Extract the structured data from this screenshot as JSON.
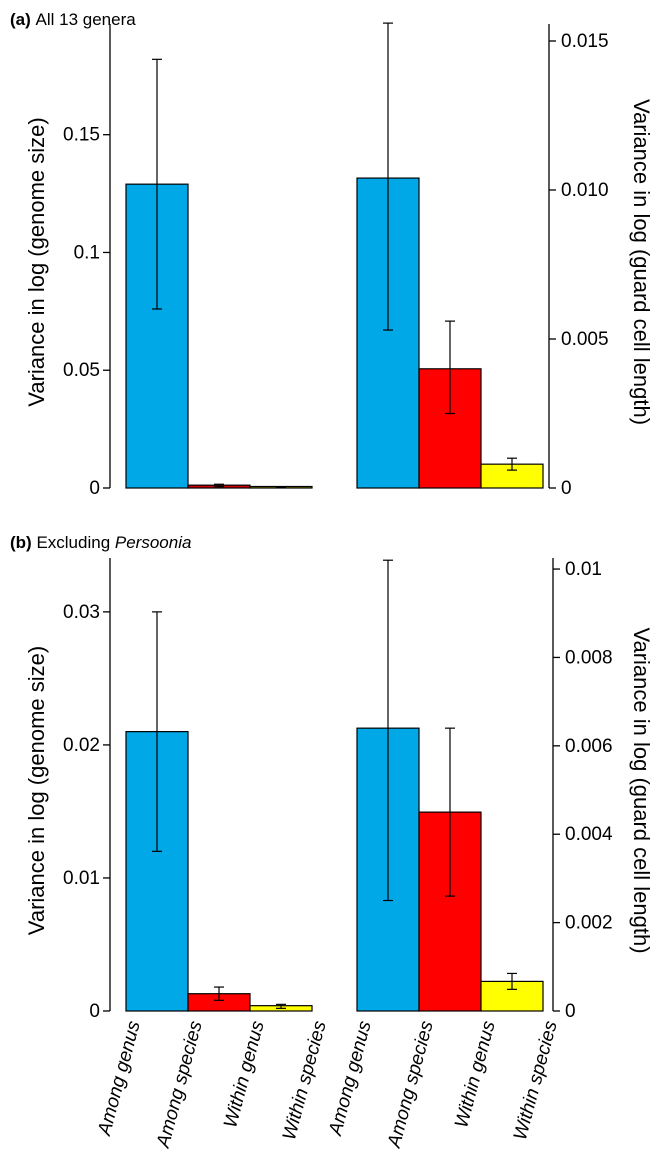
{
  "colors": {
    "among_genus": "#00A8E8",
    "among_species": "#FF0000",
    "within_genus": "#FFFF00",
    "stroke": "#000000"
  },
  "categories": [
    "Among genus",
    "Among species",
    "Within genus",
    "Within species"
  ],
  "chart_data": [
    {
      "panel_label": "(a)",
      "panel_title": "All 13 genera",
      "panel_title_italic": "",
      "panels": [
        {
          "type": "bar",
          "side": "left",
          "ylabel": "Variance in log (genome size)",
          "ylim": [
            0,
            0.197
          ],
          "yticks": [
            {
              "value": 0,
              "label": "0"
            },
            {
              "value": 0.05,
              "label": "0.05"
            },
            {
              "value": 0.1,
              "label": "0.1"
            },
            {
              "value": 0.15,
              "label": "0.15"
            }
          ],
          "values": [
            0.129,
            0.0012,
            0.0004
          ],
          "errors": [
            [
              0.076,
              0.182
            ],
            [
              0.0006,
              0.0016
            ],
            [
              0.0002,
              0.0006
            ]
          ],
          "colors": [
            "#00A8E8",
            "#CC0000",
            "#CCCC00"
          ]
        },
        {
          "type": "bar",
          "side": "right",
          "ylabel": "Variance in log (guard cell length)",
          "ylim": [
            0,
            0.01557
          ],
          "yticks": [
            {
              "value": 0,
              "label": "0"
            },
            {
              "value": 0.005,
              "label": "0.005"
            },
            {
              "value": 0.01,
              "label": "0.010"
            },
            {
              "value": 0.015,
              "label": "0.015"
            }
          ],
          "values": [
            0.0104,
            0.004,
            0.0008
          ],
          "errors": [
            [
              0.0053,
              0.0156
            ],
            [
              0.0025,
              0.0056
            ],
            [
              0.0006,
              0.001
            ]
          ],
          "colors": [
            "#00A8E8",
            "#FF0000",
            "#FFFF00"
          ]
        }
      ]
    },
    {
      "panel_label": "(b)",
      "panel_title": "Excluding ",
      "panel_title_italic": "Persoonia",
      "panels": [
        {
          "type": "bar",
          "side": "left",
          "ylabel": "Variance in log (genome size)",
          "ylim": [
            0,
            0.03405
          ],
          "yticks": [
            {
              "value": 0,
              "label": "0"
            },
            {
              "value": 0.01,
              "label": "0.01"
            },
            {
              "value": 0.02,
              "label": "0.02"
            },
            {
              "value": 0.03,
              "label": "0.03"
            }
          ],
          "values": [
            0.021,
            0.0013,
            0.0004
          ],
          "errors": [
            [
              0.012,
              0.03
            ],
            [
              0.0008,
              0.0018
            ],
            [
              0.0002,
              0.0005
            ]
          ],
          "colors": [
            "#00A8E8",
            "#FF0000",
            "#FFFF00"
          ]
        },
        {
          "type": "bar",
          "side": "right",
          "ylabel": "Variance in log (guard cell length)",
          "ylim": [
            0,
            0.01025
          ],
          "yticks": [
            {
              "value": 0,
              "label": "0"
            },
            {
              "value": 0.002,
              "label": "0.002"
            },
            {
              "value": 0.004,
              "label": "0.004"
            },
            {
              "value": 0.006,
              "label": "0.006"
            },
            {
              "value": 0.008,
              "label": "0.008"
            },
            {
              "value": 0.01,
              "label": "0.01"
            }
          ],
          "values": [
            0.0064,
            0.0045,
            0.00067
          ],
          "errors": [
            [
              0.0025,
              0.0102
            ],
            [
              0.0026,
              0.0064
            ],
            [
              0.00049,
              0.00085
            ]
          ],
          "colors": [
            "#00A8E8",
            "#FF0000",
            "#FFFF00"
          ]
        }
      ]
    }
  ]
}
